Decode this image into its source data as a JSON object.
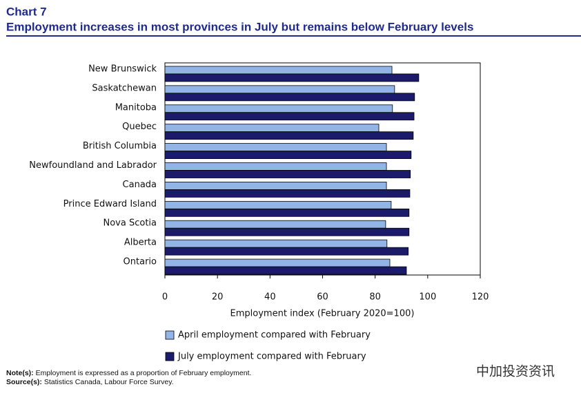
{
  "chart_data": {
    "type": "hbar",
    "title": "Chart 7",
    "subtitle": "Employment increases in most provinces in July but remains below February levels",
    "categories": [
      "New Brunswick",
      "Saskatchewan",
      "Manitoba",
      "Quebec",
      "British Columbia",
      "Newfoundland and Labrador",
      "Canada",
      "Prince Edward Island",
      "Nova Scotia",
      "Alberta",
      "Ontario"
    ],
    "series": [
      {
        "name": "April employment compared with February",
        "color": "#92b5e6",
        "values": [
          86.4,
          87.4,
          86.6,
          81.4,
          84.3,
          84.3,
          84.3,
          86.1,
          84.0,
          84.5,
          85.6
        ]
      },
      {
        "name": "July employment compared with February",
        "color": "#1c1a6b",
        "values": [
          96.6,
          95.0,
          94.8,
          94.5,
          93.7,
          93.4,
          93.2,
          92.9,
          92.9,
          92.6,
          91.9
        ]
      }
    ],
    "xlim": [
      0,
      120
    ],
    "xticks": [
      0,
      20,
      40,
      60,
      80,
      100,
      120
    ],
    "xlabel": "Employment index (February 2020=100)"
  },
  "notes": {
    "label": "Note(s):",
    "text": "Employment is expressed as a proportion of February employment."
  },
  "source": {
    "label": "Source(s):",
    "text": "Statistics Canada, Labour Force Survey."
  },
  "watermark": "中加投资资讯"
}
